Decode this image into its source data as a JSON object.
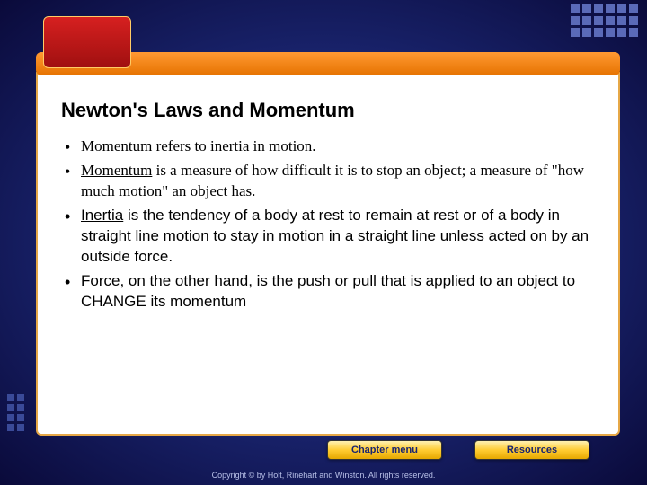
{
  "slide": {
    "title": "Newton's Laws and Momentum",
    "bullets": [
      {
        "text": "Momentum refers to inertia in motion.",
        "font": "serif",
        "term": ""
      },
      {
        "text": " is a measure of how difficult it is to stop an object; a measure of \"how much motion\" an object has.",
        "font": "serif",
        "term": "Momentum"
      },
      {
        "text": " is the tendency of a body at rest to remain at rest or of a body in straight line motion to stay in motion in a straight line unless acted on by an outside force.",
        "font": "arial",
        "term": "Inertia"
      },
      {
        "text": ", on the other hand, is the push or pull that is applied to an object to CHANGE its momentum",
        "font": "arial",
        "term": "Force"
      }
    ]
  },
  "nav": {
    "chapter_label": "Chapter menu",
    "resources_label": "Resources"
  },
  "footer": {
    "copyright": "Copyright © by Holt, Rinehart and Winston. All rights reserved."
  },
  "colors": {
    "bg_center": "#3a4db5",
    "bg_edge": "#0a0a3a",
    "orange": "#ff9933",
    "red": "#d62020",
    "button_gold": "#ffcc33",
    "panel_border": "#e6a847"
  }
}
